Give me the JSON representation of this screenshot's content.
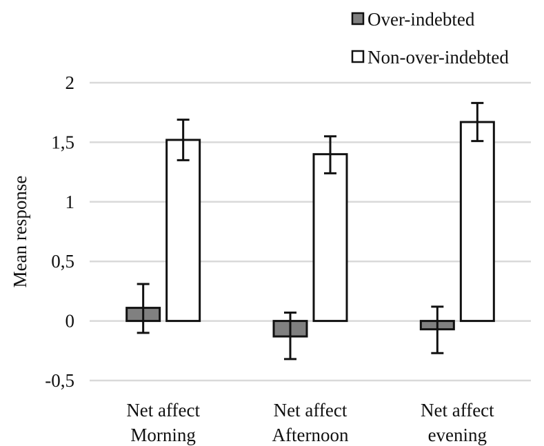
{
  "chart_data": {
    "type": "bar",
    "title": "",
    "xlabel": "",
    "ylabel": "Mean response",
    "ylim": [
      -0.5,
      2
    ],
    "yticks": [
      -0.5,
      0,
      0.5,
      1,
      1.5,
      2
    ],
    "ytick_labels": [
      "-0,5",
      "0",
      "0,5",
      "1",
      "1,5",
      "2"
    ],
    "grid": true,
    "legend_position": "top-right",
    "categories": [
      [
        "Net affect",
        "Morning"
      ],
      [
        "Net affect",
        "Afternoon"
      ],
      [
        "Net affect",
        "evening"
      ]
    ],
    "series": [
      {
        "name": "Over-indebted",
        "color": "#808080",
        "values": [
          0.11,
          -0.13,
          -0.07
        ],
        "error_low": [
          -0.1,
          -0.32,
          -0.27
        ],
        "error_high": [
          0.31,
          0.07,
          0.12
        ]
      },
      {
        "name": "Non-over-indebted",
        "color": "#ffffff",
        "values": [
          1.52,
          1.4,
          1.67
        ],
        "error_low": [
          1.35,
          1.24,
          1.51
        ],
        "error_high": [
          1.69,
          1.55,
          1.83
        ]
      }
    ]
  }
}
